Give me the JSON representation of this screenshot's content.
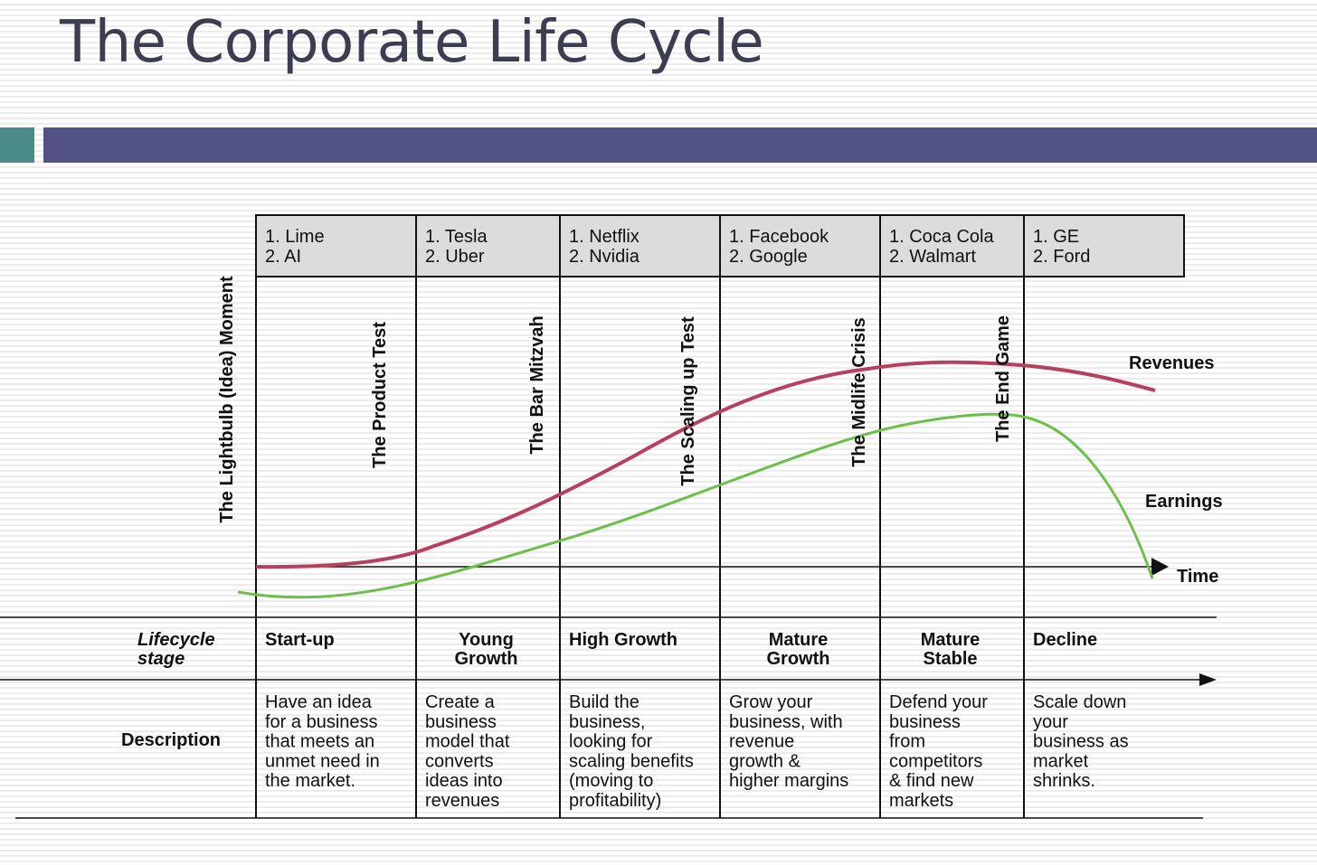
{
  "title": "The Corporate Life Cycle",
  "colors": {
    "revenues": "#b6415f",
    "earnings": "#6cbf4b",
    "header_bar": "#535287",
    "accent_block": "#4b8c88",
    "company_cells": "#dcdcdc"
  },
  "stages": [
    {
      "companies": [
        "1. Lime",
        "2. AI"
      ],
      "milestone": "The Product Test",
      "stage": [
        "Start-up"
      ],
      "description": [
        "Have an idea",
        "for a business",
        "that meets an",
        "unmet need in",
        "the market."
      ]
    },
    {
      "companies": [
        "1. Tesla",
        "2. Uber"
      ],
      "milestone": "The Bar Mitzvah",
      "stage": [
        "Young",
        "Growth"
      ],
      "description": [
        "Create a",
        "business",
        "model that",
        "converts",
        "ideas into",
        "revenues"
      ]
    },
    {
      "companies": [
        "1. Netflix",
        "2. Nvidia"
      ],
      "milestone": "The Scaling up Test",
      "stage": [
        "High Growth"
      ],
      "description": [
        "Build the",
        "business,",
        "looking for",
        "scaling benefits",
        "(moving to",
        "profitability)"
      ]
    },
    {
      "companies": [
        "1. Facebook",
        "2. Google"
      ],
      "milestone": "The Midlife Crisis",
      "stage": [
        "Mature",
        "Growth"
      ],
      "description": [
        "Grow your",
        "business, with",
        "revenue",
        "growth &",
        "higher margins"
      ]
    },
    {
      "companies": [
        "1. Coca Cola",
        "2. Walmart"
      ],
      "milestone": "The End Game",
      "stage": [
        "Mature",
        "Stable"
      ],
      "description": [
        "Defend your",
        "business",
        "from",
        "competitors",
        "& find new",
        "markets"
      ]
    },
    {
      "companies": [
        "1. GE",
        "2. Ford"
      ],
      "milestone": "",
      "stage": [
        "Decline"
      ],
      "description": [
        "Scale down",
        "your",
        "business as",
        "market",
        "shrinks."
      ]
    }
  ],
  "first_milestone": "The Lightbulb (Idea) Moment",
  "curve_labels": {
    "revenues": "Revenues",
    "earnings": "Earnings",
    "time": "Time"
  },
  "row_labels": {
    "lifecycle": [
      "Lifecycle",
      "stage"
    ],
    "description": "Description"
  }
}
